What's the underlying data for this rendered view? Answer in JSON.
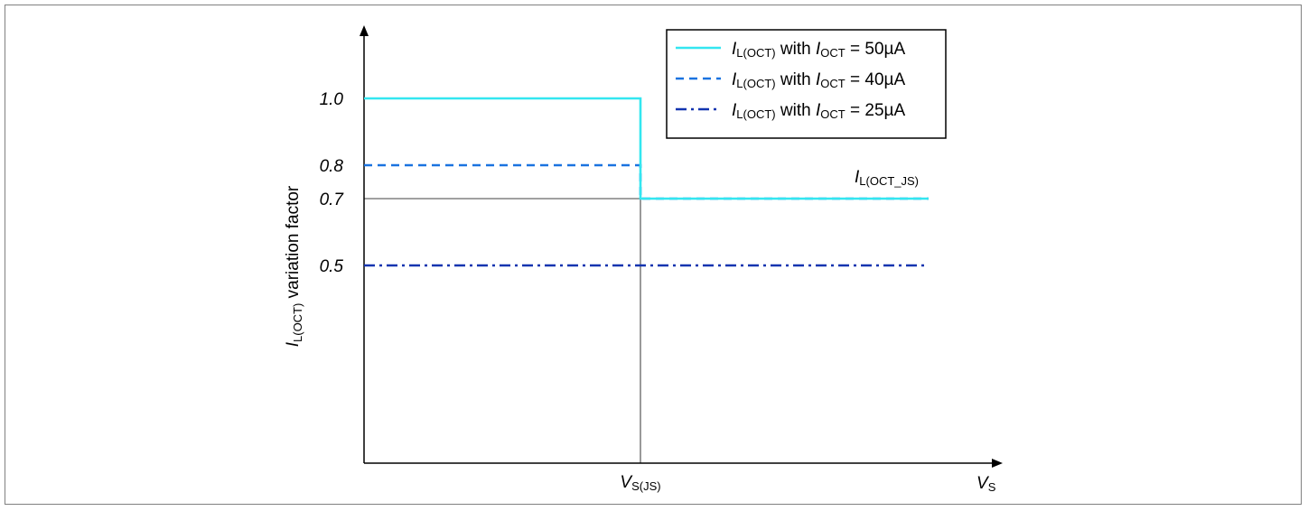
{
  "chart_data": {
    "type": "line",
    "xlabel": {
      "main": "V",
      "sub": "S"
    },
    "ylabel": {
      "main": "I",
      "sub": "L(OCT)",
      "rest": " variation factor"
    },
    "x_marker": {
      "main": "V",
      "sub": "S(JS)",
      "position": "V_S(JS)"
    },
    "y_ticks": [
      "1.0",
      "0.8",
      "0.7",
      "0.5"
    ],
    "ylim": [
      0,
      1.3
    ],
    "grid": false,
    "legend_position": "top-right",
    "annotation": {
      "main": "I",
      "sub": "L(OCT_JS)"
    },
    "series": [
      {
        "name": "I L(OCT) with I OCT = 50µA",
        "label_parts": {
          "i1": "I",
          "s1": "L(OCT)",
          "mid": " with ",
          "i2": "I",
          "s2": "OCT",
          "tail": " = 50µA"
        },
        "style": "solid",
        "color": "#33e6f0",
        "values_before_vsjs": 1.0,
        "values_after_vsjs": 0.7
      },
      {
        "name": "I L(OCT) with I OCT = 40µA",
        "label_parts": {
          "i1": "I",
          "s1": "L(OCT)",
          "mid": " with ",
          "i2": "I",
          "s2": "OCT",
          "tail": " = 40µA"
        },
        "style": "dashed",
        "color": "#1a73e0",
        "values_before_vsjs": 0.8,
        "values_after_vsjs": 0.7
      },
      {
        "name": "I L(OCT) with I OCT = 25µA",
        "label_parts": {
          "i1": "I",
          "s1": "L(OCT)",
          "mid": " with ",
          "i2": "I",
          "s2": "OCT",
          "tail": " = 25µA"
        },
        "style": "dashdot",
        "color": "#1235b0",
        "values_before_vsjs": 0.5,
        "values_after_vsjs": 0.5
      }
    ]
  }
}
